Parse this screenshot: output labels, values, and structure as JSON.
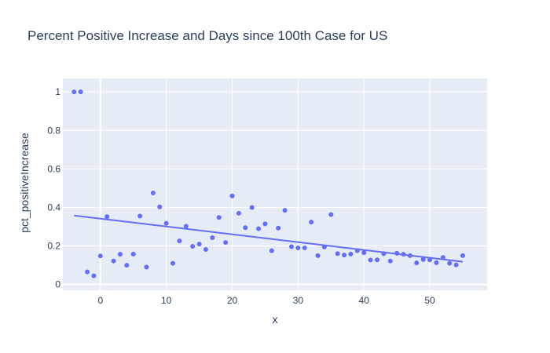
{
  "chart_data": {
    "type": "scatter",
    "title": "Percent Positive Increase and Days since 100th Case for US",
    "xlabel": "x",
    "ylabel": "pct_positiveIncrease",
    "xlim": [
      -5.7,
      58.7
    ],
    "ylim": [
      -0.03,
      1.07
    ],
    "xticks": [
      0,
      10,
      20,
      30,
      40,
      50
    ],
    "yticks": [
      0,
      0.2,
      0.4,
      0.6,
      0.8,
      1
    ],
    "ytick_labels": [
      "0",
      "0.2",
      "0.4",
      "0.6",
      "0.8",
      "1"
    ],
    "grid": true,
    "background": "#e5ecf6",
    "marker_color": "#636efa",
    "line_color": "#636efa",
    "series": [
      {
        "mode": "markers",
        "x": [
          -4,
          -3,
          -2,
          -1,
          0,
          1,
          2,
          3,
          4,
          5,
          6,
          7,
          8,
          9,
          10,
          11,
          12,
          13,
          14,
          15,
          16,
          17,
          18,
          19,
          20,
          21,
          22,
          23,
          24,
          25,
          26,
          27,
          28,
          29,
          30,
          31,
          32,
          33,
          34,
          35,
          36,
          37,
          38,
          39,
          40,
          41,
          42,
          43,
          44,
          45,
          46,
          47,
          48,
          49,
          50,
          51,
          52,
          53,
          54,
          55
        ],
        "y": [
          1.0,
          1.0,
          0.065,
          0.045,
          0.148,
          0.352,
          0.122,
          0.157,
          0.1,
          0.158,
          0.355,
          0.09,
          0.475,
          0.403,
          0.318,
          0.11,
          0.226,
          0.302,
          0.198,
          0.21,
          0.182,
          0.243,
          0.348,
          0.218,
          0.46,
          0.37,
          0.295,
          0.4,
          0.29,
          0.315,
          0.175,
          0.293,
          0.385,
          0.196,
          0.19,
          0.19,
          0.324,
          0.15,
          0.195,
          0.363,
          0.16,
          0.153,
          0.158,
          0.175,
          0.165,
          0.127,
          0.128,
          0.16,
          0.122,
          0.162,
          0.157,
          0.15,
          0.112,
          0.13,
          0.128,
          0.113,
          0.14,
          0.11,
          0.102,
          0.15
        ]
      },
      {
        "mode": "lines",
        "x": [
          -4,
          55
        ],
        "y": [
          0.358,
          0.118
        ]
      }
    ]
  }
}
